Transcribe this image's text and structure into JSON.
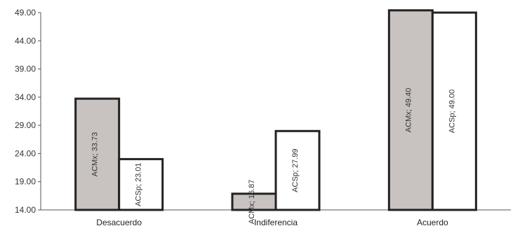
{
  "chart_data": {
    "type": "bar",
    "categories": [
      "Desacuerdo",
      "Indiferencia",
      "Acuerdo"
    ],
    "series": [
      {
        "name": "ACMx",
        "values": [
          33.73,
          16.87,
          49.4
        ],
        "labels": [
          "ACMx;  33.73",
          "ACMx;  16.87",
          "ACMx;  49.40"
        ],
        "color": "#c8c3c0"
      },
      {
        "name": "ACSp",
        "values": [
          23.01,
          27.99,
          49.0
        ],
        "labels": [
          "ACSp;  23.01",
          "ACSp;  27.99",
          "ACSp;  49.00"
        ],
        "color": "#ffffff"
      }
    ],
    "yticks": [
      "14.00",
      "19.00",
      "24.00",
      "29.00",
      "34.00",
      "39.00",
      "44.00",
      "49.00"
    ],
    "ylim": [
      14,
      49
    ],
    "grid": false,
    "legend": "none",
    "title": "",
    "xlabel": "",
    "ylabel": ""
  }
}
